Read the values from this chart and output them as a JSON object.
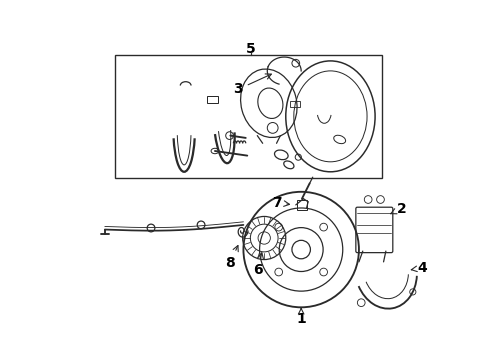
{
  "bg_color": "#ffffff",
  "line_color": "#2a2a2a",
  "label_color": "#000000",
  "fig_width": 4.9,
  "fig_height": 3.6,
  "dpi": 100,
  "label_fontsize": 10,
  "lw": 0.9
}
